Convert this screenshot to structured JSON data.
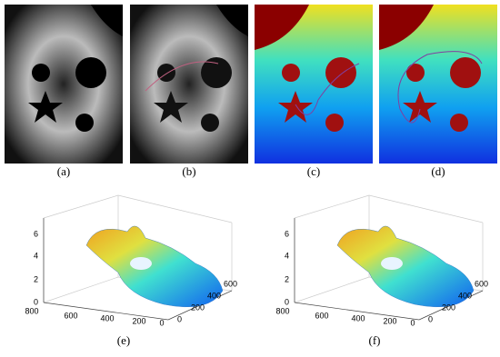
{
  "top_panels": [
    "(a)",
    "(b)",
    "(c)",
    "(d)"
  ],
  "bottom_panels": [
    {
      "label": "(e)",
      "zticks": [
        0,
        2,
        4,
        6
      ],
      "xticks": [
        800,
        600,
        400,
        200,
        0
      ],
      "yticks": [
        0,
        200,
        400,
        600
      ]
    },
    {
      "label": "(f)",
      "zticks": [
        0,
        2,
        4,
        6
      ],
      "xticks": [
        800,
        600,
        400,
        200,
        0
      ],
      "yticks": [
        0,
        200,
        400,
        600
      ]
    }
  ]
}
